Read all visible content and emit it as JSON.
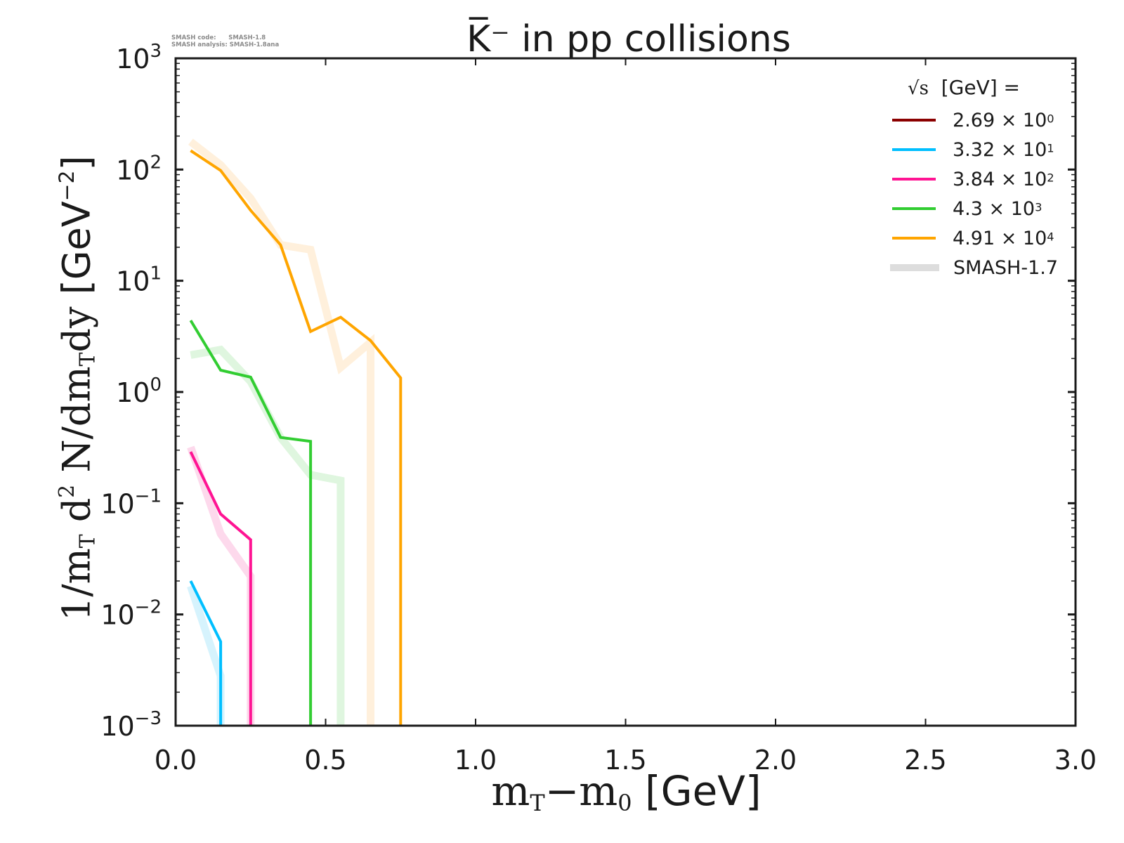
{
  "meta": {
    "line1": "SMASH code:      SMASH-1.8",
    "line2": "SMASH analysis: SMASH-1.8ana"
  },
  "chart_data": {
    "type": "line",
    "title": "K̅⁻ in pp collisions",
    "xlabel_parts": {
      "m": "m",
      "sub_T": "T",
      "minus": "−m",
      "sub_0": "0",
      "unit": " [GeV]"
    },
    "ylabel_parts": {
      "a": "1/m",
      "sub_T": "T",
      "b": " d",
      "sup_2": "2",
      "c": " N/dm",
      "sub_T2": "T",
      "d": "dy ",
      "unit": "[GeV",
      "unit_exp": "−2",
      "close": "]"
    },
    "xlim": [
      0.0,
      3.0
    ],
    "ylim": [
      0.001,
      1000
    ],
    "yscale": "log",
    "xticks": [
      0.0,
      0.5,
      1.0,
      1.5,
      2.0,
      2.5,
      3.0
    ],
    "xtick_labels": [
      "0.0",
      "0.5",
      "1.0",
      "1.5",
      "2.0",
      "2.5",
      "3.0"
    ],
    "yticks": [
      -3,
      -2,
      -1,
      0,
      1,
      2,
      3
    ],
    "ytick_labels": [
      {
        "base": "10",
        "exp": "−3"
      },
      {
        "base": "10",
        "exp": "−2"
      },
      {
        "base": "10",
        "exp": "−1"
      },
      {
        "base": "10",
        "exp": "0"
      },
      {
        "base": "10",
        "exp": "1"
      },
      {
        "base": "10",
        "exp": "2"
      },
      {
        "base": "10",
        "exp": "3"
      }
    ],
    "grid": false,
    "legend": {
      "placement": "top-right",
      "title": "[GeV] =",
      "title_symbol": "√s",
      "entries": [
        {
          "mant": "2.69 × 10",
          "exp": "0",
          "color": "#8b0000"
        },
        {
          "mant": "3.32 × 10",
          "exp": "1",
          "color": "#00bfff"
        },
        {
          "mant": "3.84 × 10",
          "exp": "2",
          "color": "#ff1493"
        },
        {
          "mant": "4.3 × 10",
          "exp": "3",
          "color": "#32cd32"
        },
        {
          "mant": "4.91 × 10",
          "exp": "4",
          "color": "#ffa500"
        },
        {
          "mant": "SMASH-1.7",
          "exp": "",
          "color": "#dddddd",
          "reference": true
        }
      ]
    },
    "series": [
      {
        "name": "2.69 GeV (SMASH-1.8)",
        "color": "#8b0000",
        "x": [],
        "y": []
      },
      {
        "name": "33.2 GeV (SMASH-1.8)",
        "color": "#00bfff",
        "x": [
          0.05,
          0.15,
          0.15
        ],
        "y": [
          0.02,
          0.0057,
          0.001
        ]
      },
      {
        "name": "384 GeV (SMASH-1.8)",
        "color": "#ff1493",
        "x": [
          0.05,
          0.15,
          0.25,
          0.25
        ],
        "y": [
          0.29,
          0.08,
          0.047,
          0.001
        ]
      },
      {
        "name": "4300 GeV (SMASH-1.8)",
        "color": "#32cd32",
        "x": [
          0.05,
          0.15,
          0.25,
          0.35,
          0.45,
          0.45
        ],
        "y": [
          4.4,
          1.57,
          1.36,
          0.39,
          0.36,
          0.001
        ]
      },
      {
        "name": "49100 GeV (SMASH-1.8)",
        "color": "#ffa500",
        "x": [
          0.05,
          0.15,
          0.25,
          0.35,
          0.45,
          0.55,
          0.65,
          0.75,
          0.75
        ],
        "y": [
          148,
          98,
          43,
          21,
          3.5,
          4.7,
          2.9,
          1.34,
          0.001
        ]
      }
    ],
    "reference_series": [
      {
        "name": "33.2 GeV (SMASH-1.7)",
        "color": "#d6f3fd",
        "x": [
          0.05,
          0.15,
          0.15
        ],
        "y": [
          0.018,
          0.0028,
          0.001
        ]
      },
      {
        "name": "384 GeV (SMASH-1.7)",
        "color": "#fdd9ec",
        "x": [
          0.05,
          0.15,
          0.25,
          0.25
        ],
        "y": [
          0.32,
          0.053,
          0.022,
          0.001
        ]
      },
      {
        "name": "4300 GeV (SMASH-1.7)",
        "color": "#dff6df",
        "x": [
          0.05,
          0.15,
          0.25,
          0.35,
          0.45,
          0.55,
          0.55
        ],
        "y": [
          2.15,
          2.4,
          1.24,
          0.39,
          0.18,
          0.16,
          0.001
        ]
      },
      {
        "name": "49100 GeV (SMASH-1.7)",
        "color": "#fff0dc",
        "x": [
          0.05,
          0.15,
          0.25,
          0.35,
          0.45,
          0.55,
          0.65,
          0.65
        ],
        "y": [
          178,
          110,
          55,
          21,
          19,
          1.66,
          2.8,
          0.001
        ]
      }
    ]
  }
}
